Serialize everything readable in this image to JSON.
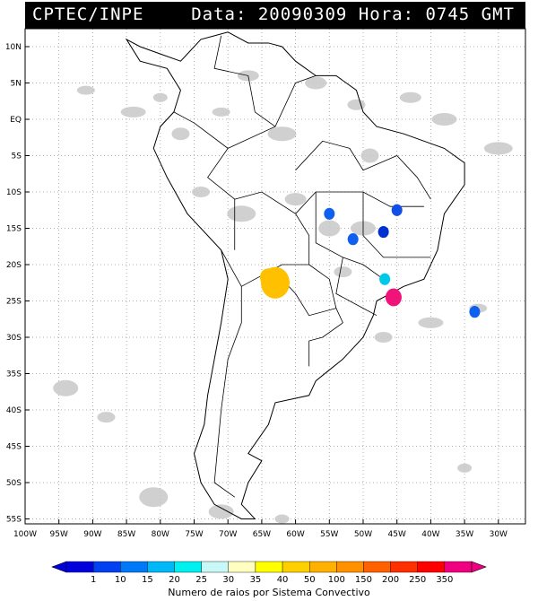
{
  "header": {
    "title": "CPTEC/INPE",
    "data_label": "Data:",
    "date": "20090309",
    "hora_label": "Hora:",
    "time": "0745 GMT"
  },
  "axes": {
    "lat_labels": [
      "10N",
      "5N",
      "EQ",
      "5S",
      "10S",
      "15S",
      "20S",
      "25S",
      "30S",
      "35S",
      "40S",
      "45S",
      "50S",
      "55S"
    ],
    "lon_labels": [
      "100W",
      "95W",
      "90W",
      "85W",
      "80W",
      "75W",
      "70W",
      "65W",
      "60W",
      "55W",
      "50W",
      "45W",
      "40W",
      "35W",
      "30W"
    ]
  },
  "colorbar": {
    "ticks": [
      "1",
      "10",
      "15",
      "20",
      "25",
      "30",
      "35",
      "40",
      "50",
      "100",
      "150",
      "200",
      "250",
      "350"
    ],
    "colors": [
      "#0000dd",
      "#0040f0",
      "#0078f8",
      "#00b8f8",
      "#00f0f0",
      "#c8f8f8",
      "#ffffc0",
      "#ffff00",
      "#ffd000",
      "#ffb000",
      "#ff9000",
      "#ff6000",
      "#ff3000",
      "#ff0000",
      "#f00080"
    ],
    "label": "Numero de raios por Sistema Convectivo"
  },
  "systems": [
    {
      "lon": -63.0,
      "lat": -22.5,
      "class": "50",
      "color": "#ffc000"
    },
    {
      "lon": -45.5,
      "lat": -24.5,
      "class": "350",
      "color": "#f0147a"
    },
    {
      "lon": -46.8,
      "lat": -22.0,
      "class": "25",
      "color": "#00c8e8"
    },
    {
      "lon": -51.5,
      "lat": -16.5,
      "class": "10",
      "color": "#1060f0"
    },
    {
      "lon": -47.0,
      "lat": -15.5,
      "class": "1",
      "color": "#0030d0"
    },
    {
      "lon": -45.0,
      "lat": -12.5,
      "class": "10",
      "color": "#1050e8"
    },
    {
      "lon": -55.0,
      "lat": -13.0,
      "class": "10",
      "color": "#1060f0"
    },
    {
      "lon": -33.5,
      "lat": -26.5,
      "class": "10",
      "color": "#1060f0"
    }
  ]
}
